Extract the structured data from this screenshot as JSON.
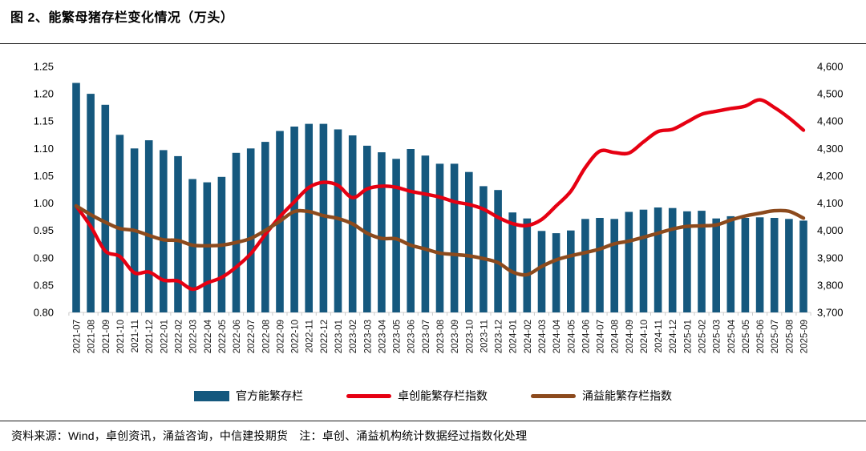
{
  "header": {
    "title": "图 2、能繁母猪存栏变化情况（万头）"
  },
  "footer": {
    "source_note": "资料来源：Wind，卓创资讯，涌益咨询，中信建投期货　注：卓创、涌益机构统计数据经过指数化处理"
  },
  "chart_data": {
    "type": "bar",
    "subtype": "combo-bar-line",
    "title": "图 2、能繁母猪存栏变化情况（万头）",
    "grid": false,
    "legend_position": "bottom",
    "categories": [
      "2021-07",
      "2021-08",
      "2021-09",
      "2021-10",
      "2021-11",
      "2021-12",
      "2022-01",
      "2022-02",
      "2022-03",
      "2022-04",
      "2022-05",
      "2022-06",
      "2022-07",
      "2022-08",
      "2022-09",
      "2022-10",
      "2022-11",
      "2022-12",
      "2023-01",
      "2023-02",
      "2023-03",
      "2023-04",
      "2023-05",
      "2023-06",
      "2023-07",
      "2023-08",
      "2023-09",
      "2023-10",
      "2023-11",
      "2023-12",
      "2024-01",
      "2024-02",
      "2024-03",
      "2024-04",
      "2024-05",
      "2024-06",
      "2024-07",
      "2024-08",
      "2024-09",
      "2024-10",
      "2024-11",
      "2024-12",
      "2025-01",
      "2025-02",
      "2025-03",
      "2025-04",
      "2025-05",
      "2025-06",
      "2025-07",
      "2025-08",
      "2025-09"
    ],
    "left_axis": {
      "min": 0.8,
      "max": 1.25,
      "ticks": [
        "1.25",
        "1.20",
        "1.15",
        "1.10",
        "1.05",
        "1.00",
        "0.95",
        "0.90",
        "0.85",
        "0.80"
      ]
    },
    "right_axis": {
      "min": 3700,
      "max": 4600,
      "ticks": [
        "4,600",
        "4,500",
        "4,400",
        "4,300",
        "4,200",
        "4,100",
        "4,000",
        "3,900",
        "3,800",
        "3,700"
      ]
    },
    "series": [
      {
        "name": "官方能繁存栏",
        "type": "bar",
        "axis": "left",
        "color": "#15587E",
        "values": [
          1.22,
          1.2,
          1.18,
          1.125,
          1.1,
          1.115,
          1.097,
          1.086,
          1.044,
          1.038,
          1.048,
          1.092,
          1.1,
          1.112,
          1.132,
          1.14,
          1.145,
          1.145,
          1.135,
          1.124,
          1.105,
          1.093,
          1.081,
          1.099,
          1.087,
          1.072,
          1.072,
          1.057,
          1.031,
          1.024,
          0.983,
          0.972,
          0.949,
          0.945,
          0.95,
          0.971,
          0.973,
          0.971,
          0.984,
          0.988,
          0.992,
          0.991,
          0.985,
          0.986,
          0.972,
          0.976,
          0.973,
          0.974,
          0.973,
          0.971,
          0.968
        ]
      },
      {
        "name": "卓创能繁存栏指数",
        "type": "line",
        "axis": "right",
        "color": "#E60012",
        "values": [
          4090,
          4015,
          3925,
          3905,
          3845,
          3848,
          3818,
          3815,
          3785,
          3808,
          3828,
          3866,
          3915,
          3985,
          4050,
          4105,
          4157,
          4176,
          4165,
          4120,
          4152,
          4162,
          4158,
          4143,
          4133,
          4122,
          4105,
          4095,
          4078,
          4048,
          4025,
          4018,
          4040,
          4090,
          4143,
          4230,
          4290,
          4285,
          4283,
          4324,
          4362,
          4370,
          4397,
          4425,
          4436,
          4446,
          4455,
          4478,
          4450,
          4412,
          4367
        ]
      },
      {
        "name": "涌益能繁存栏指数",
        "type": "line",
        "axis": "right",
        "color": "#8C4A1D",
        "values": [
          4090,
          4058,
          4030,
          4007,
          4000,
          3982,
          3966,
          3963,
          3946,
          3944,
          3946,
          3956,
          3971,
          4000,
          4034,
          4069,
          4069,
          4054,
          4044,
          4024,
          3990,
          3971,
          3969,
          3946,
          3932,
          3917,
          3912,
          3907,
          3897,
          3882,
          3848,
          3838,
          3868,
          3892,
          3907,
          3919,
          3932,
          3951,
          3961,
          3975,
          3990,
          4005,
          4015,
          4017,
          4020,
          4038,
          4053,
          4063,
          4072,
          4070,
          4045
        ]
      }
    ]
  }
}
